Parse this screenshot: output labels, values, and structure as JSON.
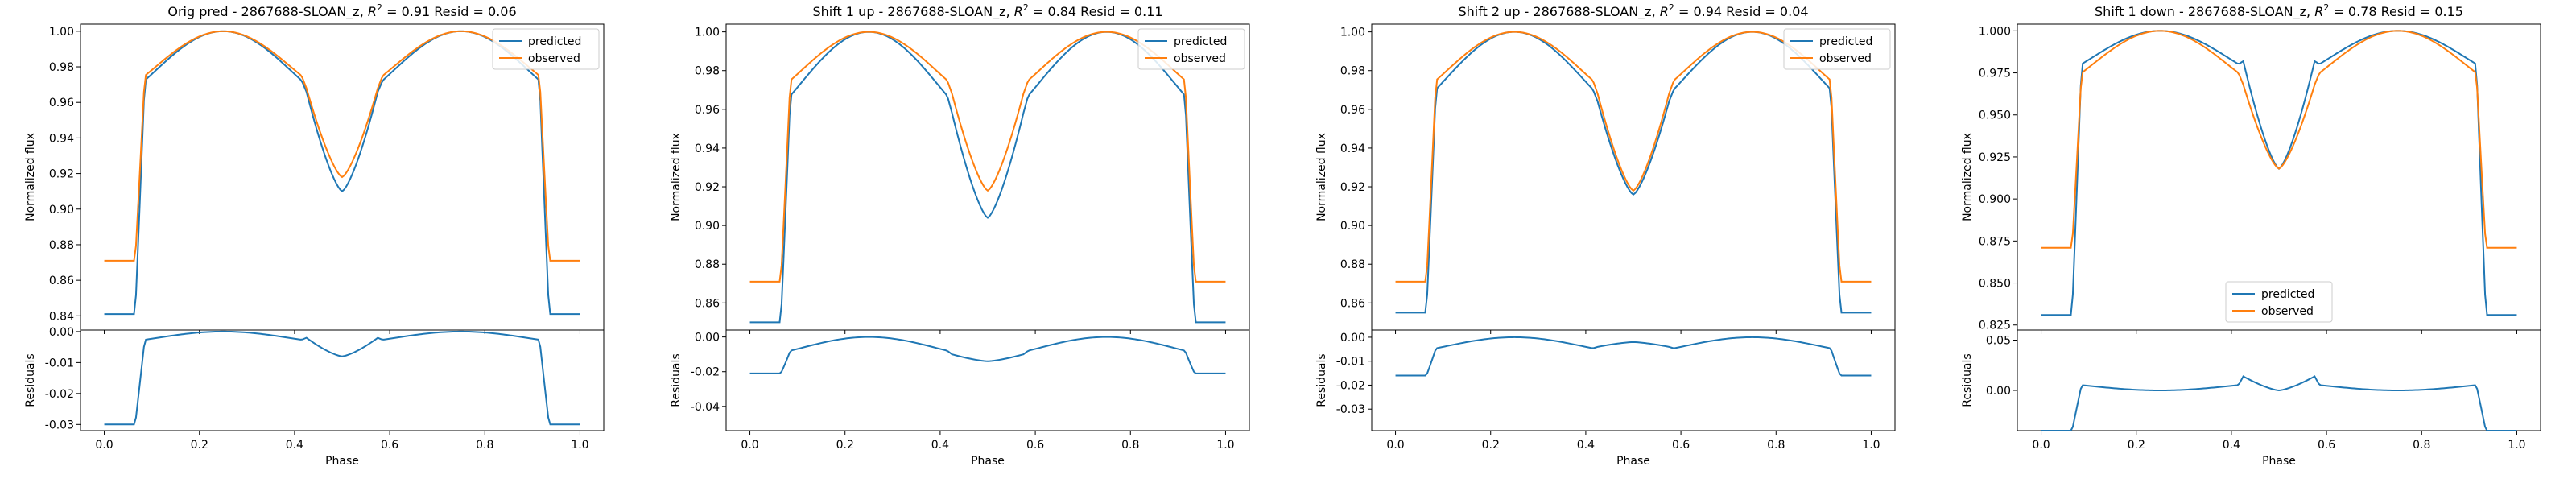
{
  "figure": {
    "legend_predicted": "predicted",
    "legend_observed": "observed",
    "xlabel": "Phase",
    "ylabel_top": "Normalized flux",
    "ylabel_bottom": "Residuals",
    "colors": {
      "predicted": "#1f77b4",
      "observed": "#ff7f0e"
    }
  },
  "chart_data": [
    {
      "type": "line",
      "title_prefix": "Orig pred - 2867688-SLOAN_z, ",
      "r2": "0.91",
      "resid": "0.06",
      "legend_placement": "upper right",
      "xlim": [
        -0.05,
        1.05
      ],
      "xticks": [
        "0.0",
        "0.2",
        "0.4",
        "0.6",
        "0.8",
        "1.0"
      ],
      "flux_ylim": [
        0.832,
        1.004
      ],
      "flux_yticks": [
        "0.84",
        "0.86",
        "0.88",
        "0.90",
        "0.92",
        "0.94",
        "0.96",
        "0.98",
        "1.00"
      ],
      "resid_ylim": [
        -0.032,
        0.0005
      ],
      "resid_yticks": [
        "0.00",
        "-0.01",
        "-0.02",
        "-0.03"
      ],
      "predicted": {
        "edge": 0.841,
        "eclipse": 0.958,
        "secondary": 0.966,
        "min": 0.91
      },
      "observed": {
        "edge": 0.871,
        "eclipse": 0.962,
        "secondary": 0.968,
        "min": 0.918
      }
    },
    {
      "type": "line",
      "title_prefix": "Shift 1 up - 2867688-SLOAN_z, ",
      "r2": "0.84",
      "resid": "0.11",
      "legend_placement": "upper right",
      "xlim": [
        -0.05,
        1.05
      ],
      "xticks": [
        "0.0",
        "0.2",
        "0.4",
        "0.6",
        "0.8",
        "1.0"
      ],
      "flux_ylim": [
        0.846,
        1.004
      ],
      "flux_yticks": [
        "0.86",
        "0.88",
        "0.90",
        "0.92",
        "0.94",
        "0.96",
        "0.98",
        "1.00"
      ],
      "resid_ylim": [
        -0.054,
        0.004
      ],
      "resid_yticks": [
        "0.00",
        "-0.02",
        "-0.04"
      ],
      "predicted": {
        "edge": 0.85,
        "eclipse": 0.95,
        "secondary": 0.958,
        "min": 0.904
      },
      "observed": {
        "edge": 0.871,
        "eclipse": 0.962,
        "secondary": 0.968,
        "min": 0.918
      }
    },
    {
      "type": "line",
      "title_prefix": "Shift 2 up - 2867688-SLOAN_z, ",
      "r2": "0.94",
      "resid": "0.04",
      "legend_placement": "upper right",
      "xlim": [
        -0.05,
        1.05
      ],
      "xticks": [
        "0.0",
        "0.2",
        "0.4",
        "0.6",
        "0.8",
        "1.0"
      ],
      "flux_ylim": [
        0.846,
        1.004
      ],
      "flux_yticks": [
        "0.86",
        "0.88",
        "0.90",
        "0.92",
        "0.94",
        "0.96",
        "0.98",
        "1.00"
      ],
      "resid_ylim": [
        -0.039,
        0.003
      ],
      "resid_yticks": [
        "0.00",
        "-0.01",
        "-0.02",
        "-0.03"
      ],
      "predicted": {
        "edge": 0.855,
        "eclipse": 0.955,
        "secondary": 0.964,
        "min": 0.916
      },
      "observed": {
        "edge": 0.871,
        "eclipse": 0.962,
        "secondary": 0.968,
        "min": 0.918
      }
    },
    {
      "type": "line",
      "title_prefix": "Shift 1 down - 2867688-SLOAN_z, ",
      "r2": "0.78",
      "resid": "0.15",
      "legend_placement": "lower center",
      "xlim": [
        -0.05,
        1.05
      ],
      "xticks": [
        "0.0",
        "0.2",
        "0.4",
        "0.6",
        "0.8",
        "1.0"
      ],
      "flux_ylim": [
        0.822,
        1.004
      ],
      "flux_yticks": [
        "0.825",
        "0.850",
        "0.875",
        "0.900",
        "0.925",
        "0.950",
        "0.975",
        "1.000"
      ],
      "resid_ylim": [
        -0.04,
        0.06
      ],
      "resid_yticks": [
        "0.05",
        "0.00"
      ],
      "predicted": {
        "edge": 0.831,
        "eclipse": 0.97,
        "secondary": 0.982,
        "min": 0.918
      },
      "observed": {
        "edge": 0.871,
        "eclipse": 0.962,
        "secondary": 0.968,
        "min": 0.918
      }
    }
  ]
}
